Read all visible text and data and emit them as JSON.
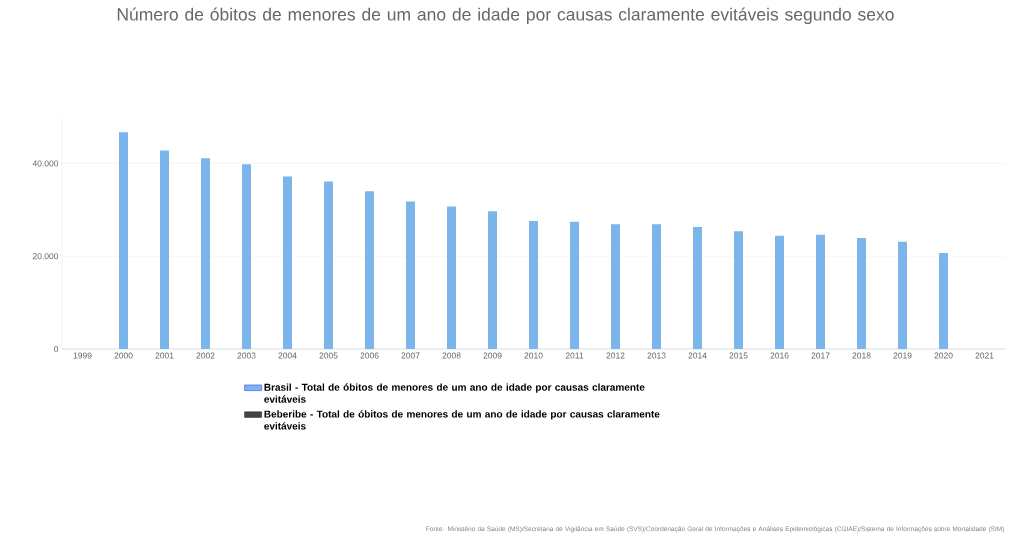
{
  "chart_data": {
    "type": "bar",
    "title": "Número de óbitos de menores de um ano de idade por causas claramente evitáveis segundo sexo",
    "categories": [
      "1999",
      "2000",
      "2001",
      "2002",
      "2003",
      "2004",
      "2005",
      "2006",
      "2007",
      "2008",
      "2009",
      "2010",
      "2011",
      "2012",
      "2013",
      "2014",
      "2015",
      "2016",
      "2017",
      "2018",
      "2019",
      "2020",
      "2021"
    ],
    "series": [
      {
        "name": "Brasil - Total de óbitos de menores de um ano de idade por causas claramente evitáveis",
        "color": "#7cb5ec",
        "values": [
          null,
          46700,
          42800,
          41100,
          39800,
          37200,
          36100,
          34000,
          31800,
          30700,
          29700,
          27600,
          27400,
          26900,
          26900,
          26300,
          25400,
          24400,
          24600,
          23900,
          23100,
          20700,
          null
        ]
      },
      {
        "name": "Beberibe - Total de óbitos de menores de um ano de idade por causas claramente evitáveis",
        "color": "#434348",
        "values": [
          null,
          null,
          null,
          null,
          null,
          null,
          null,
          null,
          null,
          null,
          null,
          null,
          null,
          null,
          null,
          null,
          null,
          null,
          null,
          null,
          null,
          null,
          null
        ]
      }
    ],
    "yticks": [
      0,
      {
        "value": 20000,
        "label": "20.000"
      },
      {
        "value": 40000,
        "label": "40.000"
      }
    ],
    "ylim": [
      0,
      50000
    ],
    "grid": "y",
    "legend": "bottom",
    "annotations": [
      "Fonte: Ministério da Saúde (MS)/Secretaria de Vigilância em Saúde (SVS)/Coordenação Geral de Informações e Análises Epidemiológicas (CGIAE)/Sistema de Informações sobre Mortalidade (SIM)"
    ]
  }
}
